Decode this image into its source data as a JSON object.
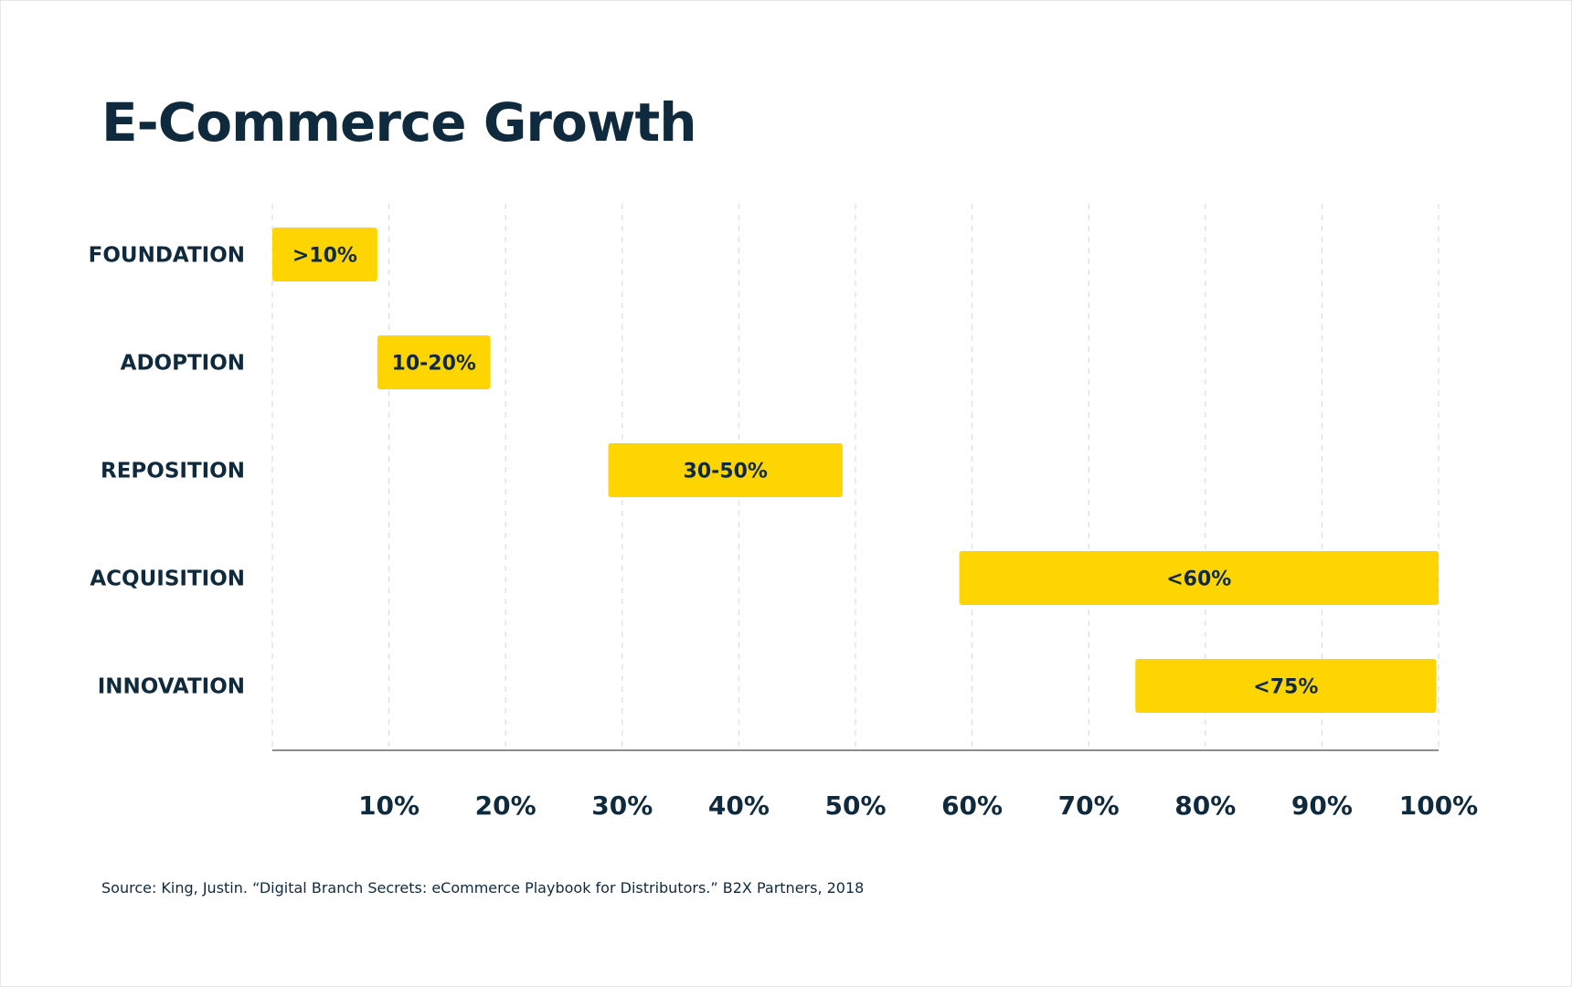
{
  "chart_data": {
    "type": "bar",
    "orientation": "horizontal-range",
    "title": "E-Commerce Growth",
    "xlabel": "",
    "ylabel": "",
    "xlim": [
      0,
      100
    ],
    "ticks": [
      {
        "value": 10,
        "label": "10%"
      },
      {
        "value": 20,
        "label": "20%"
      },
      {
        "value": 30,
        "label": "30%"
      },
      {
        "value": 40,
        "label": "40%"
      },
      {
        "value": 50,
        "label": "50%"
      },
      {
        "value": 60,
        "label": "60%"
      },
      {
        "value": 70,
        "label": "70%"
      },
      {
        "value": 80,
        "label": "80%"
      },
      {
        "value": 90,
        "label": "90%"
      },
      {
        "value": 100,
        "label": "100%"
      }
    ],
    "grid": true,
    "legend": "none",
    "bar_color": "#fed500",
    "categories": [
      "FOUNDATION",
      "ADOPTION",
      "REPOSITION",
      "ACQUISITION",
      "INNOVATION"
    ],
    "bars": [
      {
        "category": "FOUNDATION",
        "start": 0,
        "end": 9,
        "label": ">10%"
      },
      {
        "category": "ADOPTION",
        "start": 9,
        "end": 18.7,
        "label": "10-20%"
      },
      {
        "category": "REPOSITION",
        "start": 28.8,
        "end": 48.9,
        "label": "30-50%"
      },
      {
        "category": "ACQUISITION",
        "start": 58.9,
        "end": 100,
        "label": "<60%"
      },
      {
        "category": "INNOVATION",
        "start": 74,
        "end": 99.8,
        "label": "<75%"
      }
    ]
  },
  "source": "Source: King, Justin. “Digital Branch Secrets: eCommerce Playbook for Distributors.” B2X Partners, 2018"
}
